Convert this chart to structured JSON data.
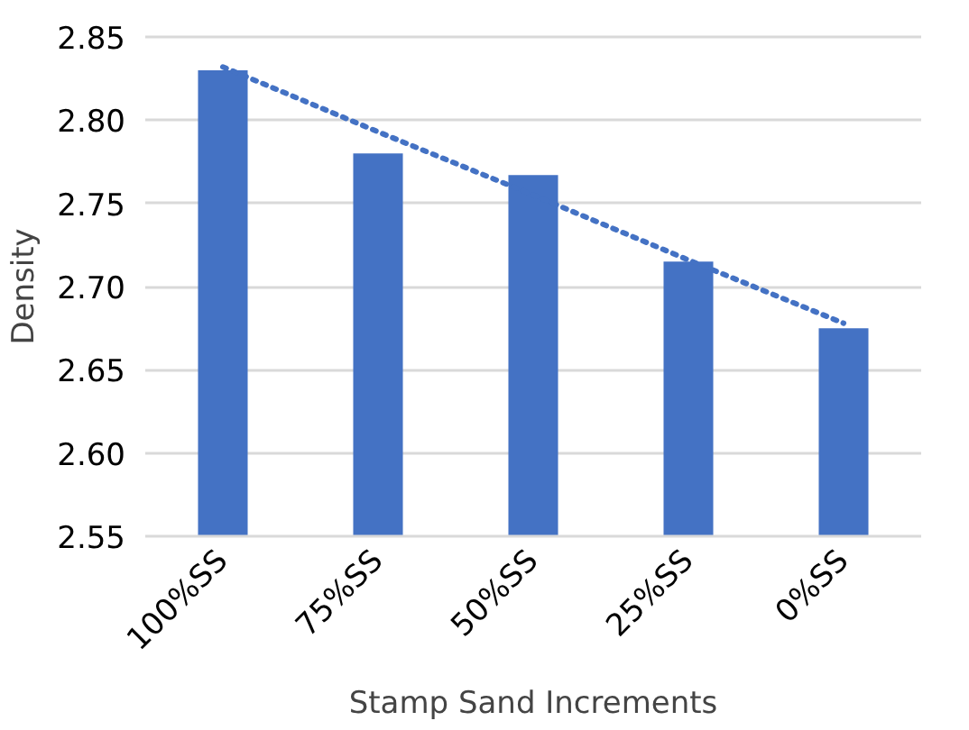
{
  "chart_data": {
    "type": "bar",
    "xlabel": "Stamp Sand Increments",
    "ylabel": "Density",
    "categories": [
      "100%SS",
      "75%SS",
      "50%SS",
      "25%SS",
      "0%SS"
    ],
    "series": [
      {
        "color": "#4472c4",
        "values": [
          2.83,
          2.78,
          2.767,
          2.715,
          2.675
        ]
      },
      {
        "type": "line",
        "color": "#4472c4",
        "line_style": "dotted",
        "values": [
          2.832,
          2.793,
          2.755,
          2.716,
          2.678
        ]
      }
    ],
    "ylim": [
      2.55,
      2.85
    ],
    "yticks": [
      2.55,
      {
        "value": 2.6,
        "label": "2.60"
      },
      2.65,
      {
        "value": 2.7,
        "label": "2.70"
      },
      2.75,
      {
        "value": 2.8,
        "label": "2.80"
      },
      2.85
    ],
    "grid": "y"
  }
}
